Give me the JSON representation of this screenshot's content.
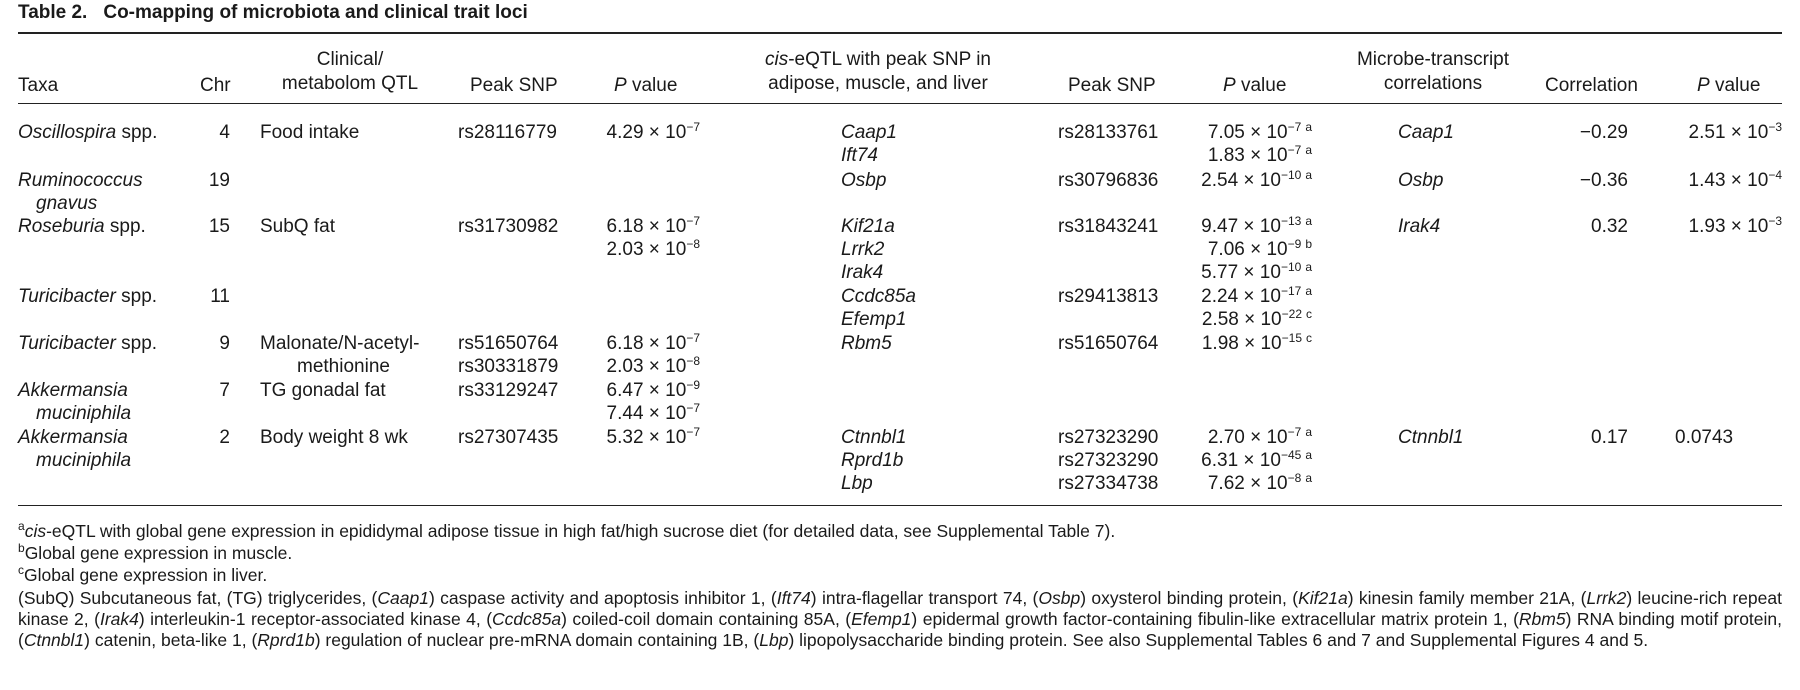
{
  "table": {
    "label": "Table 2.",
    "title": "Co-mapping of microbiota and clinical trait loci",
    "headers": {
      "taxa": "Taxa",
      "chr": "Chr",
      "clinical_l1": "Clinical/",
      "clinical_l2": "metabolom QTL",
      "peak_snp": "Peak SNP",
      "p_value_p": "P",
      "p_value_rest": " value",
      "eqtl_l1_italic": "cis",
      "eqtl_l1_rest": "-eQTL with peak SNP in",
      "eqtl_l2": "adipose, muscle, and liver",
      "peak_snp2": "Peak SNP",
      "p_value2_p": "P",
      "p_value2_rest": " value",
      "microbe_l1": "Microbe-transcript",
      "microbe_l2": "correlations",
      "correlation": "Correlation",
      "p_value3_p": "P",
      "p_value3_rest": " value"
    },
    "rows": [
      {
        "taxa_italic": "Oscillospira",
        "taxa_rest": " spp.",
        "chr": "4",
        "clinical_l1": "Food intake",
        "peak_snp": "rs28116779",
        "p1": [
          {
            "m": "4.29 × 10",
            "e": "−7"
          }
        ],
        "genes": [
          "Caap1",
          "Ift74"
        ],
        "snp2": [
          "rs28133761"
        ],
        "p2": [
          {
            "m": "7.05 × 10",
            "e": "−7",
            "n": "a"
          },
          {
            "m": "1.83 × 10",
            "e": "−7",
            "n": "a"
          }
        ],
        "mt_gene": "Caap1",
        "corr": "−0.29",
        "p3": {
          "m": "2.51 × 10",
          "e": "−3"
        }
      },
      {
        "taxa_italic": "Ruminococcus",
        "taxa_l2_italic": "gnavus",
        "chr": "19",
        "genes": [
          "Osbp"
        ],
        "snp2": [
          "rs30796836"
        ],
        "p2": [
          {
            "m": "2.54 × 10",
            "e": "−10",
            "n": "a"
          }
        ],
        "mt_gene": "Osbp",
        "corr": "−0.36",
        "p3": {
          "m": "1.43 × 10",
          "e": "−4"
        }
      },
      {
        "taxa_italic": "Roseburia",
        "taxa_rest": " spp.",
        "chr": "15",
        "clinical_l1": "SubQ fat",
        "peak_snp": "rs31730982",
        "p1": [
          {
            "m": "6.18 × 10",
            "e": "−7"
          },
          {
            "m": "2.03 × 10",
            "e": "−8"
          }
        ],
        "genes": [
          "Kif21a",
          "Lrrk2",
          "Irak4"
        ],
        "snp2": [
          "rs31843241"
        ],
        "p2": [
          {
            "m": "9.47 × 10",
            "e": "−13",
            "n": "a"
          },
          {
            "m": "7.06 × 10",
            "e": "−9",
            "n": "b"
          },
          {
            "m": "5.77 × 10",
            "e": "−10",
            "n": "a"
          }
        ],
        "mt_gene": "Irak4",
        "corr": "0.32",
        "p3": {
          "m": "1.93 × 10",
          "e": "−3"
        }
      },
      {
        "taxa_italic": "Turicibacter",
        "taxa_rest": " spp.",
        "chr": "11",
        "genes": [
          "Ccdc85a",
          "Efemp1"
        ],
        "snp2": [
          "rs29413813"
        ],
        "p2": [
          {
            "m": "2.24 × 10",
            "e": "−17",
            "n": "a"
          },
          {
            "m": "2.58 × 10",
            "e": "−22",
            "n": "c"
          }
        ]
      },
      {
        "taxa_italic": "Turicibacter",
        "taxa_rest": " spp.",
        "chr": "9",
        "clinical_l1": "Malonate/N-acetyl-",
        "clinical_l2": "methionine",
        "peak_snp": "rs51650764",
        "peak_snp_l2": "rs30331879",
        "p1": [
          {
            "m": "6.18 × 10",
            "e": "−7"
          },
          {
            "m": "2.03 × 10",
            "e": "−8"
          }
        ],
        "genes": [
          "Rbm5"
        ],
        "snp2": [
          "rs51650764"
        ],
        "p2": [
          {
            "m": "1.98 × 10",
            "e": "−15",
            "n": "c"
          }
        ]
      },
      {
        "taxa_italic": "Akkermansia",
        "taxa_l2_italic": "muciniphila",
        "chr": "7",
        "clinical_l1": "TG gonadal fat",
        "peak_snp": "rs33129247",
        "p1": [
          {
            "m": "6.47 × 10",
            "e": "−9"
          },
          {
            "m": "7.44 × 10",
            "e": "−7"
          }
        ]
      },
      {
        "taxa_italic": "Akkermansia",
        "taxa_l2_italic": "muciniphila",
        "chr": "2",
        "clinical_l1": "Body weight 8 wk",
        "peak_snp": "rs27307435",
        "p1": [
          {
            "m": "5.32 × 10",
            "e": "−7"
          }
        ],
        "genes": [
          "Ctnnbl1",
          "Rprd1b",
          "Lbp"
        ],
        "snp2": [
          "rs27323290",
          "rs27323290",
          "rs27334738"
        ],
        "p2": [
          {
            "m": "2.70 × 10",
            "e": "−7",
            "n": "a"
          },
          {
            "m": "6.31 × 10",
            "e": "−45",
            "n": "a"
          },
          {
            "m": "7.62 × 10",
            "e": "−8",
            "n": "a"
          }
        ],
        "mt_gene": "Ctnnbl1",
        "corr": "0.17",
        "p3_plain": "0.0743"
      }
    ],
    "footnotes": {
      "a_mark": "a",
      "a_italic": "cis",
      "a_text": "-eQTL with global gene expression in epididymal adipose tissue in high fat/high sucrose diet (for detailed data, see Supplemental Table 7).",
      "b_mark": "b",
      "b_text": "Global gene expression in muscle.",
      "c_mark": "c",
      "c_text": "Global gene expression in liver.",
      "abbrev": [
        {
          "t": "(SubQ) Subcutaneous fat, (TG) triglycerides, ("
        },
        {
          "t": "Caap1",
          "i": true
        },
        {
          "t": ") caspase activity and apoptosis inhibitor 1, ("
        },
        {
          "t": "Ift74",
          "i": true
        },
        {
          "t": ") intra-flagellar transport 74, ("
        },
        {
          "t": "Osbp",
          "i": true
        },
        {
          "t": ") oxysterol binding protein, ("
        },
        {
          "t": "Kif21a",
          "i": true
        },
        {
          "t": ") kinesin family member 21A, ("
        },
        {
          "t": "Lrrk2",
          "i": true
        },
        {
          "t": ") leucine-rich repeat kinase 2, ("
        },
        {
          "t": "Irak4",
          "i": true
        },
        {
          "t": ") interleukin-1 receptor-associated kinase 4, ("
        },
        {
          "t": "Ccdc85a",
          "i": true
        },
        {
          "t": ") coiled-coil domain containing 85A, ("
        },
        {
          "t": "Efemp1",
          "i": true
        },
        {
          "t": ") epidermal growth factor-containing fibulin-like extracellular matrix protein 1, ("
        },
        {
          "t": "Rbm5",
          "i": true
        },
        {
          "t": ") RNA binding motif protein, ("
        },
        {
          "t": "Ctnnbl1",
          "i": true
        },
        {
          "t": ") catenin, beta-like 1, ("
        },
        {
          "t": "Rprd1b",
          "i": true
        },
        {
          "t": ") regulation of nuclear pre-mRNA domain containing 1B, ("
        },
        {
          "t": "Lbp",
          "i": true
        },
        {
          "t": ") lipopolysaccharide binding protein. See also Supplemental Tables 6 and 7 and Supplemental Figures 4 and 5."
        }
      ]
    }
  }
}
